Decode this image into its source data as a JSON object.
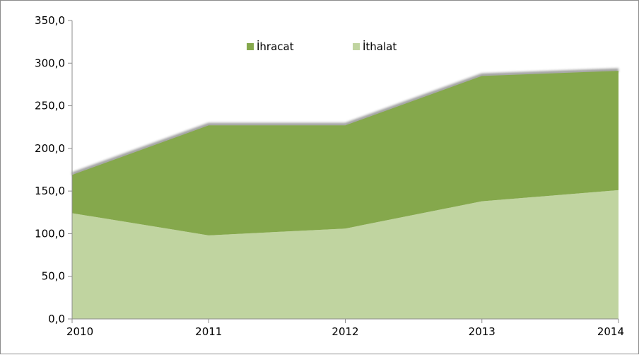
{
  "chart_data": {
    "type": "area",
    "stacked": true,
    "x": [
      "2010",
      "2011",
      "2012",
      "2013",
      "2014"
    ],
    "series": [
      {
        "name": "İthalat",
        "values": [
          124,
          98,
          106,
          138,
          151
        ],
        "color": "#c0d4a0"
      },
      {
        "name": "İhracat",
        "values": [
          45,
          129,
          121,
          147,
          140
        ],
        "color": "#85a84c"
      }
    ],
    "totals": [
      169,
      227,
      227,
      285,
      291
    ],
    "ylim": [
      0,
      350
    ],
    "yticks": [
      "0,0",
      "50,0",
      "100,0",
      "150,0",
      "200,0",
      "250,0",
      "300,0",
      "350,0"
    ],
    "ytick_values": [
      0,
      50,
      100,
      150,
      200,
      250,
      300,
      350
    ],
    "legend": {
      "position": "top-center",
      "order": [
        "İhracat",
        "İthalat"
      ]
    },
    "grid": false,
    "title": "",
    "xlabel": "",
    "ylabel": ""
  }
}
